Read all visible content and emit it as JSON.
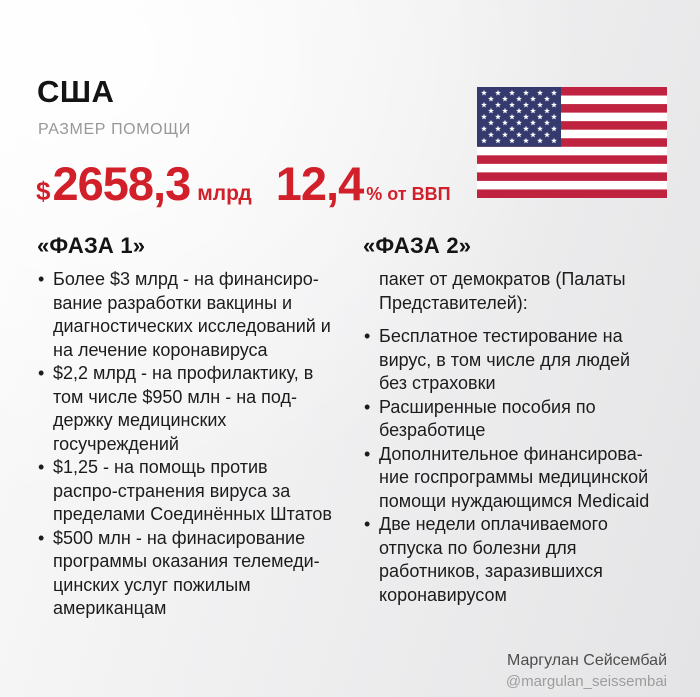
{
  "header": {
    "country": "США",
    "subtitle": "РАЗМЕР ПОМОЩИ",
    "aid": {
      "currency": "$",
      "amount": "2658,3",
      "unit": "млрд",
      "gdp_value": "12,4",
      "gdp_suffix": "% от ВВП"
    }
  },
  "phase1": {
    "title": "«ФАЗА 1»",
    "items": [
      "Более $3 млрд - на финансиро-вание разработки вакцины и диагностических исследований и на лечение коронавируса",
      "$2,2 млрд - на профилактику, в том числе $950 млн - на под-держку медицинских госучреждений",
      "$1,25 - на помощь против распро-странения вируса за пределами Соединённых Штатов",
      "$500 млн - на финасирование программы оказания телемеди-цинских услуг пожилым американцам"
    ]
  },
  "phase2": {
    "title": "«ФАЗА 2»",
    "subtitle": "пакет от демократов (Палаты Представителей):",
    "items": [
      "Бесплатное тестирование на вирус, в том числе для людей без страховки",
      "Расширенные пособия по безработице",
      "Дополнительное финансирова-ние госпрограммы медицинской помощи нуждающимся Medicaid",
      "Две недели оплачиваемого отпуска по болезни для работников, заразившихся коронавирусом"
    ]
  },
  "footer": {
    "author": "Маргулан Сейсембай",
    "handle": "@margulan_seissembai"
  },
  "colors": {
    "accent_red": "#d2202a",
    "text_black": "#1c1c1c",
    "subtitle_gray": "#989898",
    "flag_red": "#bf2340",
    "flag_blue": "#343a6e"
  }
}
